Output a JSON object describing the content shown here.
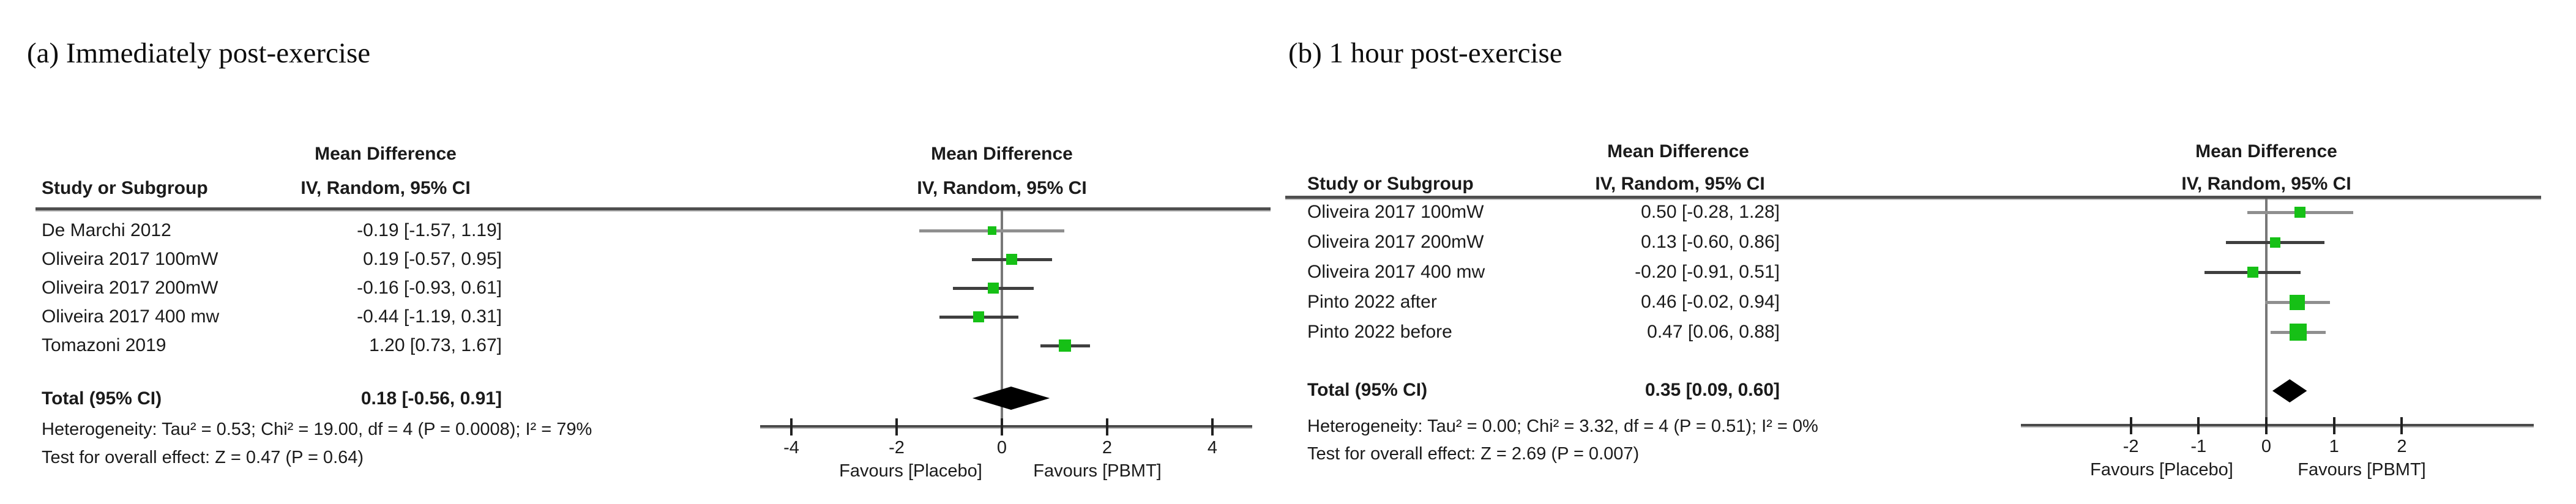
{
  "figure": {
    "colors": {
      "marker_green": "#16c016",
      "diamond_black": "#000000",
      "ci_dark": "#3f3f3f",
      "ci_light": "#8f8f8f",
      "axis_gray": "#4a4a4a",
      "text": "#1b1b1b"
    }
  },
  "chart_data": [
    {
      "type": "forest",
      "panel_label": "a",
      "title": "(a) Immediately post-exercise",
      "effect_measure": "Mean Difference",
      "method": "IV, Random, 95% CI",
      "table": {
        "study_col_header": "Study or Subgroup",
        "effect_col_header_line1": "Mean Difference",
        "effect_col_header_line2": "IV, Random, 95% CI"
      },
      "plot": {
        "header_line1": "Mean Difference",
        "header_line2": "IV, Random, 95% CI",
        "axis_ticks": [
          "-4",
          "-2",
          "0",
          "2",
          "4"
        ],
        "axis_range": [
          -4.6,
          4.7
        ],
        "favours_left": "Favours [Placebo]",
        "favours_right": "Favours [PBMT]"
      },
      "studies": [
        {
          "name": "De Marchi 2012",
          "md": -0.19,
          "ci_low": -1.57,
          "ci_high": 1.19,
          "label": "-0.19 [-1.57, 1.19]"
        },
        {
          "name": "Oliveira 2017 100mW",
          "md": 0.19,
          "ci_low": -0.57,
          "ci_high": 0.95,
          "label": "0.19 [-0.57, 0.95]"
        },
        {
          "name": "Oliveira 2017 200mW",
          "md": -0.16,
          "ci_low": -0.93,
          "ci_high": 0.61,
          "label": "-0.16 [-0.93, 0.61]"
        },
        {
          "name": "Oliveira 2017 400 mw",
          "md": -0.44,
          "ci_low": -1.19,
          "ci_high": 0.31,
          "label": "-0.44 [-1.19, 0.31]"
        },
        {
          "name": "Tomazoni 2019",
          "md": 1.2,
          "ci_low": 0.73,
          "ci_high": 1.67,
          "label": "1.20 [0.73, 1.67]"
        }
      ],
      "total": {
        "name": "Total (95% CI)",
        "md": 0.18,
        "ci_low": -0.56,
        "ci_high": 0.91,
        "label": "0.18 [-0.56, 0.91]"
      },
      "footnotes": {
        "heterogeneity": "Heterogeneity: Tau² = 0.53; Chi² = 19.00, df = 4 (P = 0.0008); I² = 79%",
        "overall_effect": "Test for overall effect: Z = 0.47 (P = 0.64)"
      }
    },
    {
      "type": "forest",
      "panel_label": "b",
      "title": "(b) 1 hour post-exercise",
      "effect_measure": "Mean Difference",
      "method": "IV, Random, 95% CI",
      "table": {
        "study_col_header": "Study or Subgroup",
        "effect_col_header_line1": "Mean Difference",
        "effect_col_header_line2": "IV, Random, 95% CI"
      },
      "plot": {
        "header_line1": "Mean Difference",
        "header_line2": "IV, Random, 95% CI",
        "axis_ticks": [
          "-2",
          "-1",
          "0",
          "1",
          "2"
        ],
        "axis_range": [
          -3.6,
          3.9
        ],
        "favours_left": "Favours [Placebo]",
        "favours_right": "Favours [PBMT]"
      },
      "studies": [
        {
          "name": "Oliveira 2017 100mW",
          "md": 0.5,
          "ci_low": -0.28,
          "ci_high": 1.28,
          "label": "0.50 [-0.28, 1.28]"
        },
        {
          "name": "Oliveira 2017 200mW",
          "md": 0.13,
          "ci_low": -0.6,
          "ci_high": 0.86,
          "label": "0.13 [-0.60, 0.86]"
        },
        {
          "name": "Oliveira 2017 400 mw",
          "md": -0.2,
          "ci_low": -0.91,
          "ci_high": 0.51,
          "label": "-0.20 [-0.91, 0.51]"
        },
        {
          "name": "Pinto 2022 after",
          "md": 0.46,
          "ci_low": -0.02,
          "ci_high": 0.94,
          "label": "0.46 [-0.02, 0.94]"
        },
        {
          "name": "Pinto 2022 before",
          "md": 0.47,
          "ci_low": 0.06,
          "ci_high": 0.88,
          "label": "0.47 [0.06, 0.88]"
        }
      ],
      "total": {
        "name": "Total (95% CI)",
        "md": 0.35,
        "ci_low": 0.09,
        "ci_high": 0.6,
        "label": "0.35 [0.09, 0.60]"
      },
      "footnotes": {
        "heterogeneity": "Heterogeneity: Tau² = 0.00; Chi² = 3.32, df = 4 (P = 0.51); I² = 0%",
        "overall_effect": "Test for overall effect: Z = 2.69 (P = 0.007)"
      }
    }
  ]
}
